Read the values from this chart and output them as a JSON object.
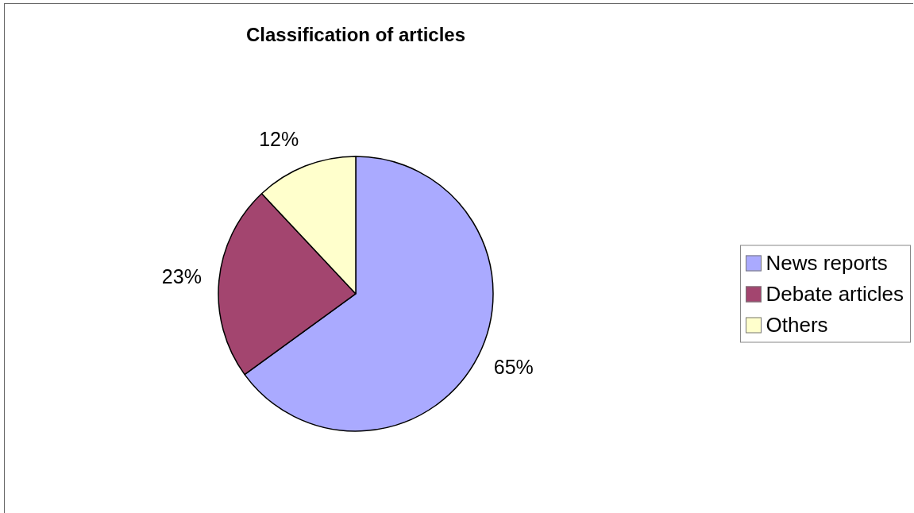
{
  "chart_data": {
    "type": "pie",
    "title": "Classification of articles",
    "categories": [
      "News reports",
      "Debate articles",
      "Others"
    ],
    "values": [
      65,
      23,
      12
    ],
    "value_labels": [
      "65%",
      "23%",
      "12%"
    ],
    "colors": [
      "#aaaaff",
      "#a3456f",
      "#ffffcc"
    ],
    "legend": "right"
  }
}
